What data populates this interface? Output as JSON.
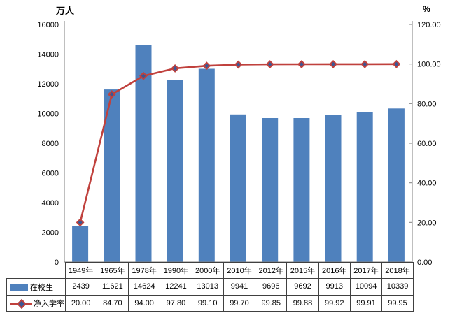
{
  "chart_data": {
    "type": "bar",
    "title": "",
    "categories": [
      "1949年",
      "1965年",
      "1978年",
      "1990年",
      "2000年",
      "2010年",
      "2012年",
      "2015年",
      "2016年",
      "2017年",
      "2018年"
    ],
    "series": [
      {
        "name": "在校生",
        "type": "bar",
        "axis": "left",
        "color": "#4f81bd",
        "values": [
          2439,
          11621,
          14624,
          12241,
          13013,
          9941,
          9696,
          9692,
          9913,
          10094,
          10339
        ]
      },
      {
        "name": "净入学率",
        "type": "line",
        "axis": "right",
        "color": "#c0413d",
        "marker": "diamond",
        "marker_fill": "#3a5795",
        "values": [
          "20.00",
          "84.70",
          "94.00",
          "97.80",
          "99.10",
          "99.70",
          "99.85",
          "99.88",
          "99.92",
          "99.91",
          "99.95"
        ]
      }
    ],
    "left_axis": {
      "title": "万人",
      "min": 0,
      "max": 16000,
      "step": 2000,
      "tick_labels": [
        "0",
        "2000",
        "4000",
        "6000",
        "8000",
        "10000",
        "12000",
        "14000",
        "16000"
      ]
    },
    "right_axis": {
      "title": "%",
      "min": 0,
      "max": 120,
      "step": 20,
      "tick_labels": [
        "0.00",
        "20.00",
        "40.00",
        "60.00",
        "80.00",
        "100.00",
        "120.00"
      ]
    },
    "grid": false,
    "legend_position": "table-left",
    "axis_color": "#7f7f7f",
    "table_border_color": "#404040"
  }
}
